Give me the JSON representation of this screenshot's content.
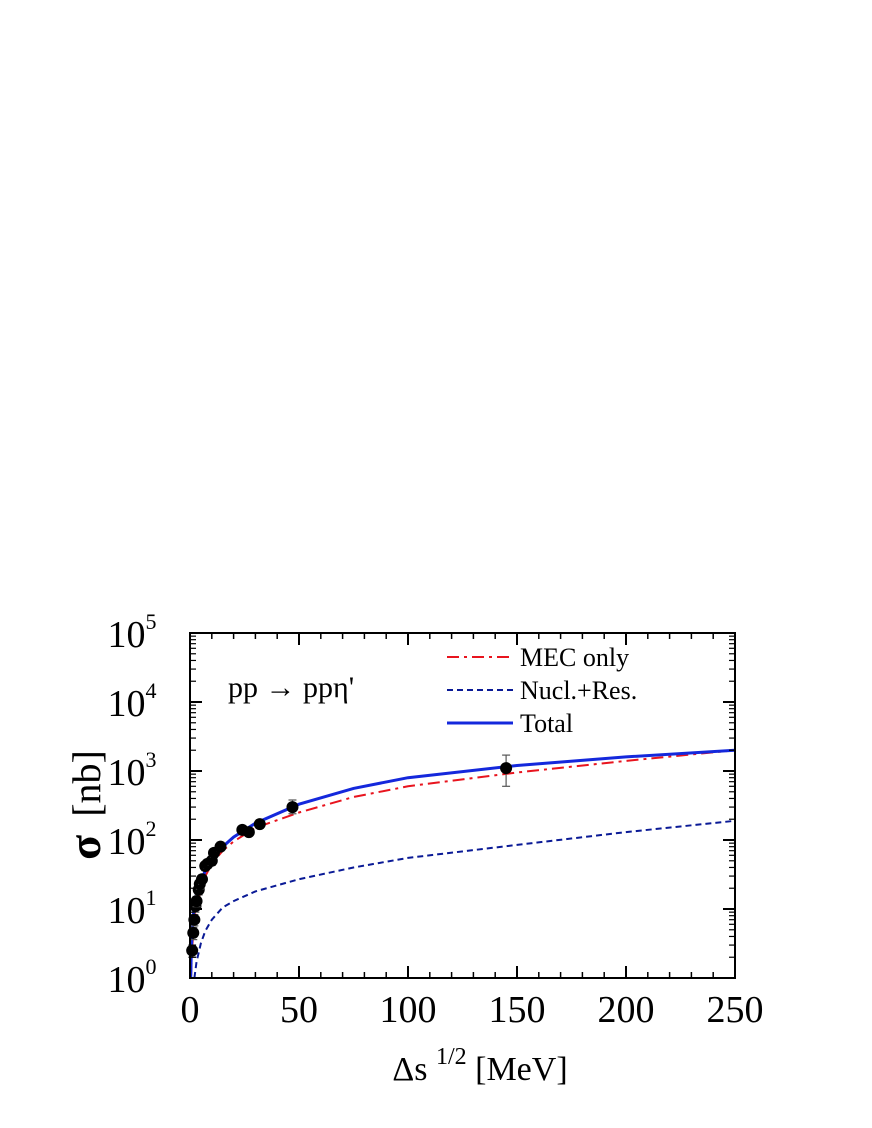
{
  "chart_data": {
    "type": "scatter",
    "yscale": "log",
    "xlabel": "Δs^{1/2}[MeV]",
    "xlabel_main": "Δs",
    "xlabel_sup": "1/2",
    "xlabel_unit": "[MeV]",
    "ylabel": "σ [nb]",
    "ylabel_symbol": "σ",
    "ylabel_unit": "[nb]",
    "xlim": [
      0,
      250
    ],
    "ylim": [
      1,
      100000
    ],
    "x_ticks": [
      0,
      50,
      100,
      150,
      200,
      250
    ],
    "x_tick_labels": [
      "0",
      "50",
      "100",
      "150",
      "200",
      "250"
    ],
    "y_ticks": [
      1,
      10,
      100,
      1000,
      10000,
      100000
    ],
    "y_tick_base": "10",
    "y_tick_exponents": [
      "0",
      "1",
      "2",
      "3",
      "4",
      "5"
    ],
    "annotation": {
      "text_left": "pp",
      "arrow": "→",
      "text_right": "ppη'"
    },
    "legend_position": "top-right",
    "series": [
      {
        "name": "MEC only",
        "kind": "line",
        "style": "dashdot",
        "color": "#e8141e",
        "x": [
          0.5,
          1,
          2,
          3,
          5,
          7,
          10,
          15,
          20,
          30,
          50,
          75,
          100,
          150,
          200,
          250
        ],
        "y": [
          1.1,
          2.8,
          7,
          12,
          18,
          30,
          45,
          70,
          95,
          150,
          250,
          420,
          600,
          950,
          1400,
          2000
        ]
      },
      {
        "name": "Nucl.+Res.",
        "kind": "line",
        "style": "dashed",
        "color": "#0a1a96",
        "x": [
          2,
          3,
          5,
          7,
          10,
          15,
          20,
          30,
          50,
          75,
          100,
          150,
          200,
          250
        ],
        "y": [
          1,
          1.7,
          3.2,
          4.8,
          7,
          10.5,
          13,
          18,
          27,
          40,
          55,
          85,
          130,
          190
        ]
      },
      {
        "name": "Total",
        "kind": "line",
        "style": "solid",
        "color": "#1428dc",
        "x": [
          0.3,
          0.6,
          1,
          1.5,
          2,
          3,
          5,
          7,
          10,
          15,
          20,
          30,
          50,
          75,
          100,
          150,
          200,
          250
        ],
        "y": [
          1,
          2.5,
          5,
          8,
          11,
          17,
          25,
          36,
          52,
          80,
          110,
          175,
          330,
          560,
          800,
          1200,
          1600,
          2000
        ]
      },
      {
        "name": "",
        "kind": "points",
        "color": "#000000",
        "x": [
          1.0,
          1.5,
          2.0,
          2.5,
          3.0,
          4.0,
          4.5,
          5.5,
          7.0,
          8.0,
          10.0,
          11.0,
          14.0,
          24.0,
          27.0,
          32.0,
          47.0,
          145.0
        ],
        "y": [
          2.5,
          4.5,
          7.0,
          11.0,
          13.0,
          19.0,
          23.0,
          27.0,
          42.0,
          45.0,
          50.0,
          65.0,
          80.0,
          140.0,
          130.0,
          170.0,
          300.0,
          1100.0
        ],
        "err_low": [
          0.5,
          0.9,
          1.3,
          2,
          2.2,
          3,
          3.5,
          4,
          6,
          6,
          7,
          9,
          10,
          18,
          16,
          22,
          60,
          500
        ],
        "err_high": [
          0.5,
          0.9,
          1.3,
          2,
          2.2,
          3,
          3.5,
          4,
          6,
          6,
          7,
          9,
          10,
          18,
          16,
          22,
          80,
          600
        ]
      }
    ]
  }
}
